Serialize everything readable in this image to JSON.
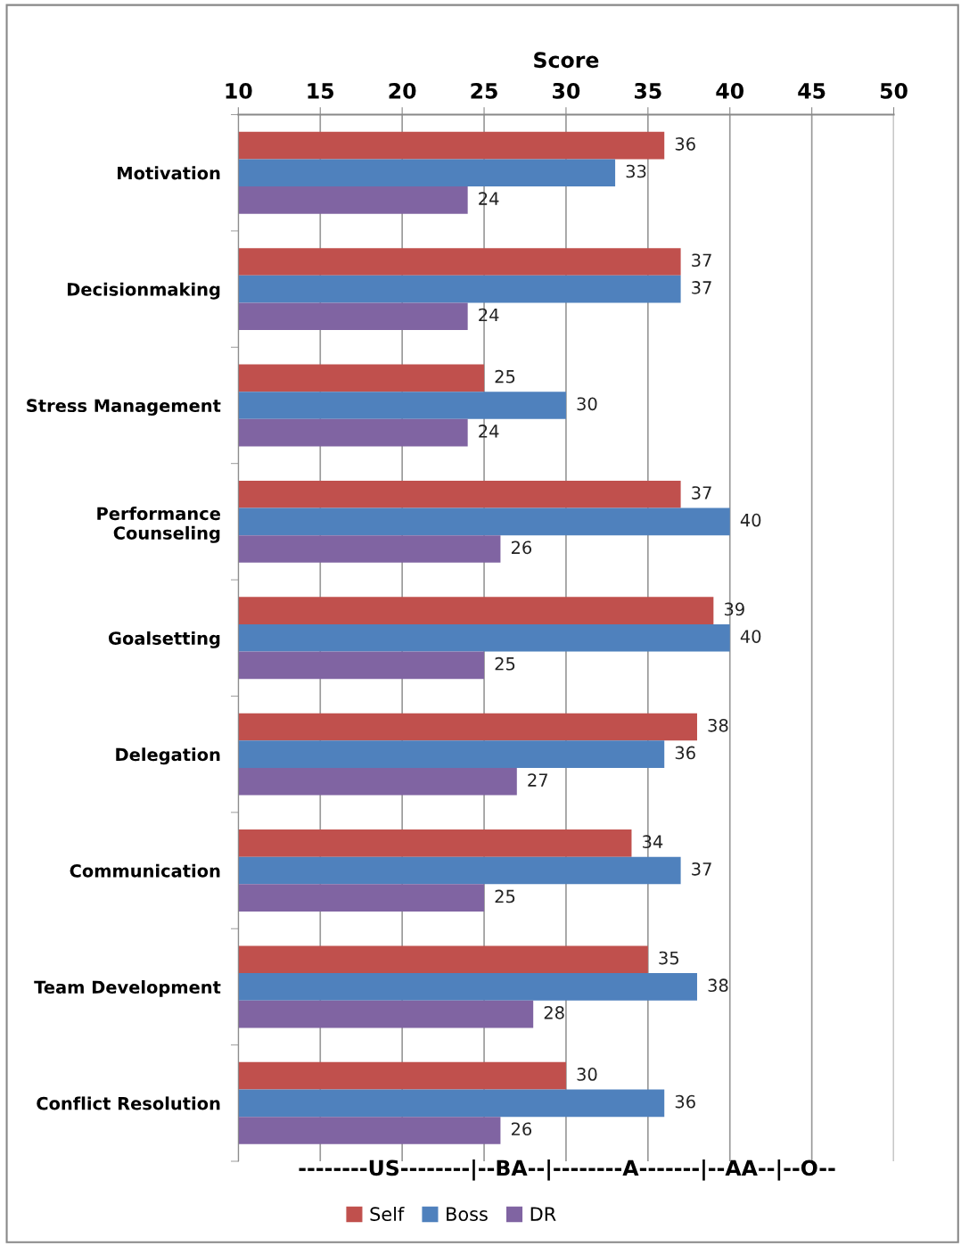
{
  "chart_data": {
    "type": "bar",
    "orientation": "horizontal",
    "xlabel": "Score",
    "categories": [
      "Motivation",
      "Decisionmaking",
      "Stress Management",
      "Performance\nCounseling",
      "Goalsetting",
      "Delegation",
      "Communication",
      "Team Development",
      "Conflict Resolution"
    ],
    "series": [
      {
        "name": "Self",
        "color": "#c0504d",
        "values": [
          36,
          37,
          25,
          37,
          39,
          38,
          34,
          35,
          30
        ]
      },
      {
        "name": "Boss",
        "color": "#4f81bd",
        "values": [
          33,
          37,
          30,
          40,
          40,
          36,
          37,
          38,
          36
        ]
      },
      {
        "name": "DR",
        "color": "#8064a2",
        "values": [
          24,
          24,
          24,
          26,
          25,
          27,
          25,
          28,
          26
        ]
      }
    ],
    "xlim": [
      10,
      50
    ],
    "xticks": [
      10,
      15,
      20,
      25,
      30,
      35,
      40,
      45,
      50
    ],
    "grid": "x",
    "legend": "bottom",
    "data_labels": true,
    "annotations": [
      "--------US--------|--BA--|--------A-------|--AA--|--O--"
    ]
  }
}
